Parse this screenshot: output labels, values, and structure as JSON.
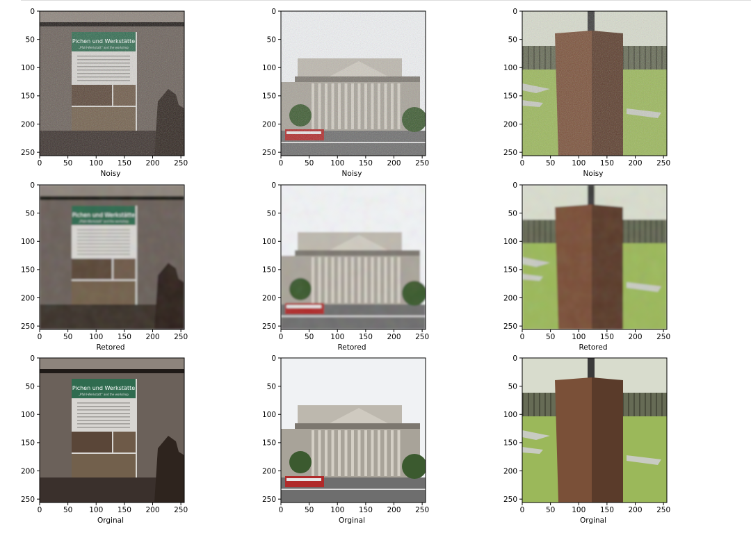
{
  "figure": {
    "rows": [
      {
        "label": "Noisy",
        "variant": "noisy"
      },
      {
        "label": "Retored",
        "variant": "restored"
      },
      {
        "label": "Orginal",
        "variant": "original"
      }
    ],
    "columns": [
      {
        "scene": "poster-on-wall",
        "colors": {
          "sky": "#8d847c",
          "wall": "#6b615a",
          "floor": "#3a302c",
          "sign": "#2f6b4f",
          "paper": "#d8d6d2"
        },
        "sign_text": "Pichen und Werkstätte",
        "sign_subtext": "„Pfahl-Werkstatt“ and the workshop"
      },
      {
        "scene": "neoclassical-building",
        "colors": {
          "sky": "#f0f2f4",
          "stone": "#bdb8ae",
          "shadow": "#7c776f",
          "road": "#6e6e6e",
          "tree": "#3b5a2f",
          "bus": "#b02a2a"
        }
      },
      {
        "scene": "rusty-pillar-on-lawn",
        "colors": {
          "sky": "#d8dccd",
          "grass": "#9bb85a",
          "pillar": "#5a3b2a",
          "pillar_light": "#7a5038",
          "fence": "#666b55",
          "path": "#c8cbc2"
        }
      }
    ],
    "axis": {
      "x_ticks": [
        0,
        50,
        100,
        150,
        200,
        250
      ],
      "y_ticks": [
        0,
        50,
        100,
        150,
        200,
        250
      ],
      "range": [
        0,
        256
      ]
    }
  }
}
